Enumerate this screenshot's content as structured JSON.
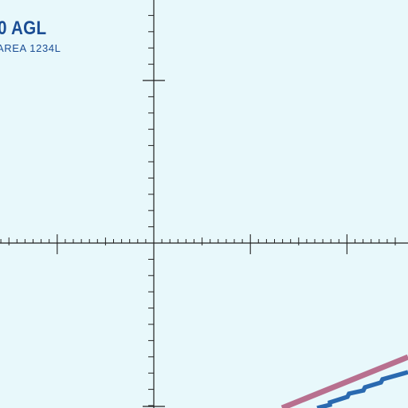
{
  "map": {
    "background_color": "#e8f8fb",
    "grid_color": "#1f1f1f",
    "altitude_label": "0 AGL",
    "area_label": "AREA 1234L",
    "label_color": "#1a4d94",
    "boundaries": [
      {
        "name": "area-boundary",
        "color": "#b8708f"
      },
      {
        "name": "airspace-boundary",
        "color": "#2a6ab0"
      }
    ]
  }
}
